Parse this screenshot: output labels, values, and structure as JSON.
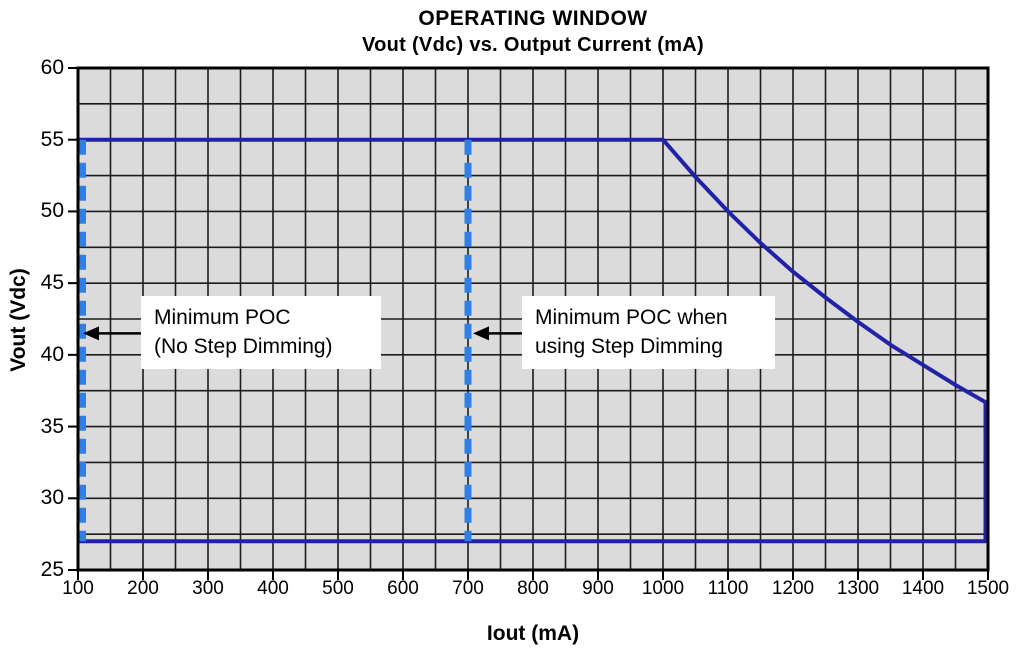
{
  "chart_data": {
    "type": "line",
    "title": "OPERATING WINDOW",
    "subtitle": "Vout (Vdc) vs. Output Current  (mA)",
    "xlabel": "Iout (mA)",
    "ylabel": "Vout (Vdc)",
    "xlim": [
      100,
      1500
    ],
    "ylim": [
      25,
      60
    ],
    "x_major_ticks": [
      100,
      200,
      300,
      400,
      500,
      600,
      700,
      800,
      900,
      1000,
      1100,
      1200,
      1300,
      1400,
      1500
    ],
    "y_major_ticks": [
      25,
      30,
      35,
      40,
      45,
      50,
      55,
      60
    ],
    "x_minor_step": 50,
    "y_minor_step": 2.5,
    "grid": true,
    "legend": "none",
    "plot_bg_color": "#DBDBDB",
    "grid_color": "#1C1C1C",
    "border_color": "#000000",
    "series": [
      {
        "name": "operating-window-boundary",
        "color": "#2222A8",
        "width": 4,
        "style": "solid",
        "points": [
          [
            100,
            55
          ],
          [
            1000,
            55
          ],
          [
            1050,
            52.4
          ],
          [
            1100,
            50
          ],
          [
            1150,
            47.8
          ],
          [
            1200,
            45.8
          ],
          [
            1250,
            44
          ],
          [
            1300,
            42.3
          ],
          [
            1350,
            40.7
          ],
          [
            1400,
            39.3
          ],
          [
            1450,
            37.9
          ],
          [
            1500,
            36.7
          ],
          [
            1500,
            27
          ],
          [
            100,
            27
          ]
        ]
      },
      {
        "name": "min-poc-no-step-dimming-line",
        "color": "#2E80E8",
        "width": 7,
        "style": "dashed",
        "points": [
          [
            100,
            55
          ],
          [
            100,
            27
          ]
        ]
      },
      {
        "name": "min-poc-step-dimming-line",
        "color": "#2E80E8",
        "width": 7,
        "style": "dashed",
        "points": [
          [
            700,
            55
          ],
          [
            700,
            27
          ]
        ]
      }
    ],
    "annotations": [
      {
        "line1": "Minimum POC",
        "line2": "(No Step Dimming)",
        "target_x_mA": 100,
        "target_y_vdc": 41.5
      },
      {
        "line1": "Minimum POC when",
        "line2": "using Step Dimming",
        "target_x_mA": 700,
        "target_y_vdc": 41.5
      }
    ]
  }
}
